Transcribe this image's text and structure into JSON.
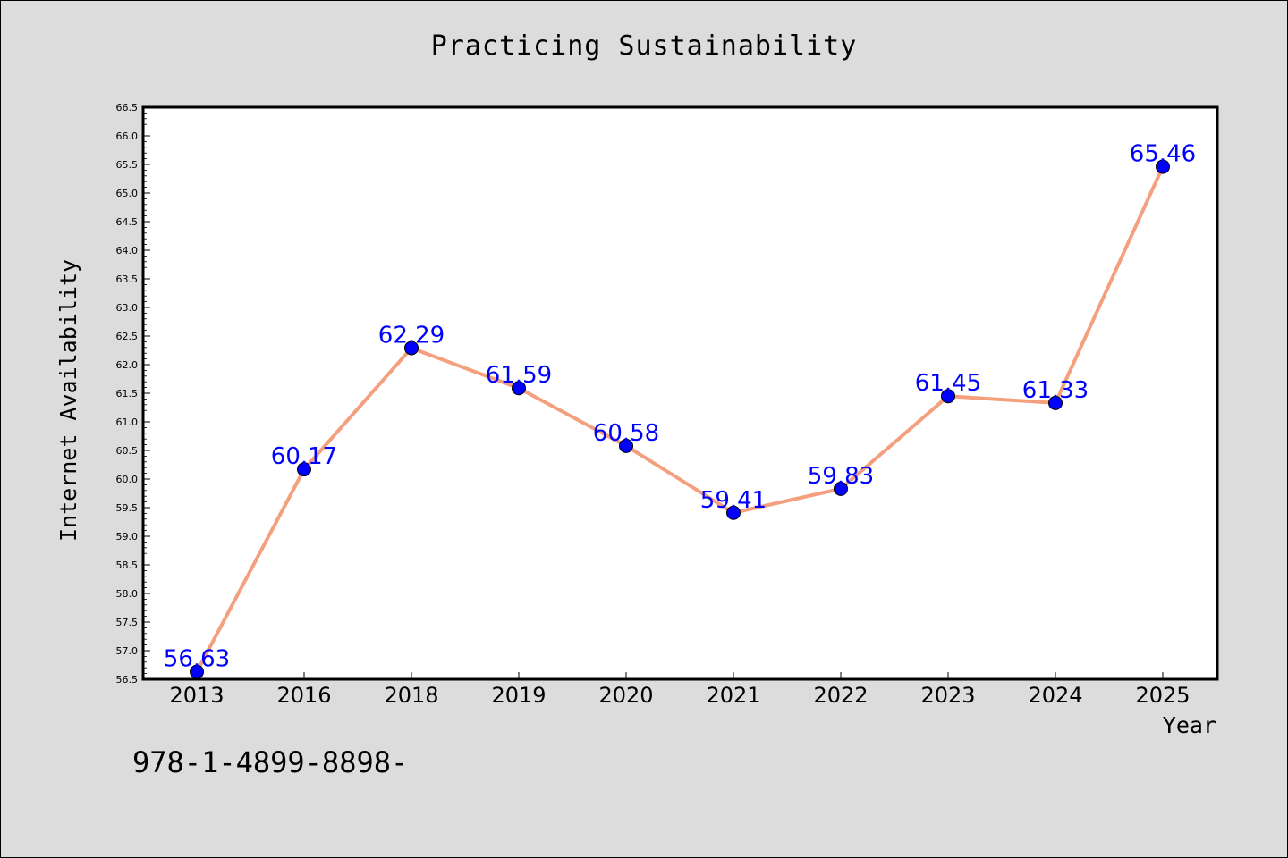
{
  "chart_data": {
    "type": "line",
    "title": "Practicing Sustainability",
    "xlabel": "Year",
    "ylabel": "Internet Availability",
    "categories": [
      "2013",
      "2016",
      "2018",
      "2019",
      "2020",
      "2021",
      "2022",
      "2023",
      "2024",
      "2025"
    ],
    "series": [
      {
        "values": [
          56.63,
          60.17,
          62.29,
          61.59,
          60.58,
          59.41,
          59.83,
          61.45,
          61.33,
          65.46
        ],
        "data_labels": [
          "56.63",
          "60.17",
          "62.29",
          "61.59",
          "60.58",
          "59.41",
          "59.83",
          "61.45",
          "61.33",
          "65.46"
        ]
      }
    ],
    "ylim": [
      56.5,
      66.5
    ],
    "yticks": [
      "56.5",
      "57.0",
      "57.5",
      "58.0",
      "58.5",
      "59.0",
      "59.5",
      "60.0",
      "60.5",
      "61.0",
      "61.5",
      "62.0",
      "62.5",
      "63.0",
      "63.5",
      "64.0",
      "64.5",
      "65.0",
      "65.5",
      "66.0",
      "66.5"
    ],
    "grid": false,
    "colors": {
      "line": "#f4a07e",
      "marker": "#0000ff",
      "label": "#0000ff"
    }
  },
  "footer": {
    "text": "978-1-4899-8898-"
  }
}
